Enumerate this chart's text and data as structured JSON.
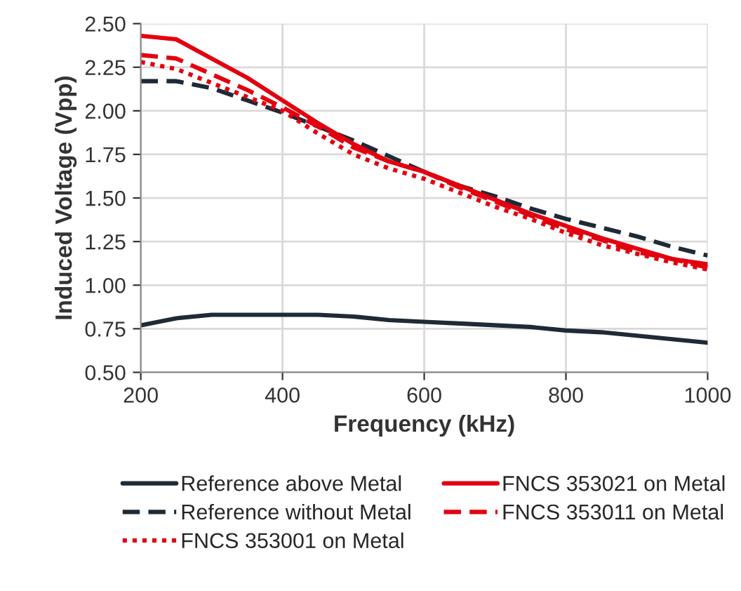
{
  "chart_data": {
    "type": "line",
    "xlabel": "Frequency (kHz)",
    "ylabel": "Induced Voltage (Vpp)",
    "x": [
      200,
      250,
      300,
      350,
      400,
      450,
      500,
      550,
      600,
      650,
      700,
      750,
      800,
      850,
      900,
      950,
      1000
    ],
    "series": [
      {
        "name": "Reference above Metal",
        "color": "#1f2a36",
        "line_style": "solid",
        "values": [
          0.77,
          0.81,
          0.83,
          0.83,
          0.83,
          0.83,
          0.82,
          0.8,
          0.79,
          0.78,
          0.77,
          0.76,
          0.74,
          0.73,
          0.71,
          0.69,
          0.67
        ]
      },
      {
        "name": "Reference without Metal",
        "color": "#1f2a36",
        "line_style": "dashed",
        "values": [
          2.17,
          2.17,
          2.13,
          2.06,
          1.99,
          1.91,
          1.83,
          1.74,
          1.65,
          1.57,
          1.51,
          1.44,
          1.38,
          1.33,
          1.28,
          1.22,
          1.17
        ]
      },
      {
        "name": "FNCS 353001 on Metal",
        "color": "#e3000f",
        "line_style": "dotted",
        "values": [
          2.28,
          2.24,
          2.16,
          2.08,
          2.0,
          1.87,
          1.75,
          1.67,
          1.61,
          1.53,
          1.45,
          1.38,
          1.3,
          1.23,
          1.18,
          1.13,
          1.09
        ]
      },
      {
        "name": "FNCS 353021 on Metal",
        "color": "#e3000f",
        "line_style": "solid",
        "values": [
          2.43,
          2.41,
          2.3,
          2.19,
          2.06,
          1.93,
          1.81,
          1.71,
          1.65,
          1.57,
          1.49,
          1.41,
          1.34,
          1.27,
          1.21,
          1.15,
          1.12
        ]
      },
      {
        "name": "FNCS 353011 on Metal",
        "color": "#e3000f",
        "line_style": "dashed",
        "values": [
          2.32,
          2.3,
          2.21,
          2.12,
          2.02,
          1.91,
          1.79,
          1.71,
          1.65,
          1.56,
          1.48,
          1.4,
          1.32,
          1.26,
          1.19,
          1.15,
          1.1
        ]
      }
    ],
    "xlim": [
      200,
      1000
    ],
    "xticks": [
      200,
      400,
      600,
      800,
      1000
    ],
    "ylim": [
      0.5,
      2.5
    ],
    "yticks": [
      {
        "value": 0.5,
        "label": "0.50"
      },
      {
        "value": 0.75,
        "label": "0.75"
      },
      {
        "value": 1.0,
        "label": "1.00"
      },
      {
        "value": 1.25,
        "label": "1.25"
      },
      {
        "value": 1.5,
        "label": "1.50"
      },
      {
        "value": 1.75,
        "label": "1.75"
      },
      {
        "value": 2.0,
        "label": "2.00"
      },
      {
        "value": 2.25,
        "label": "2.25"
      },
      {
        "value": 2.5,
        "label": "2.50"
      }
    ],
    "grid": true,
    "legend": "bottom",
    "marker": "none"
  }
}
